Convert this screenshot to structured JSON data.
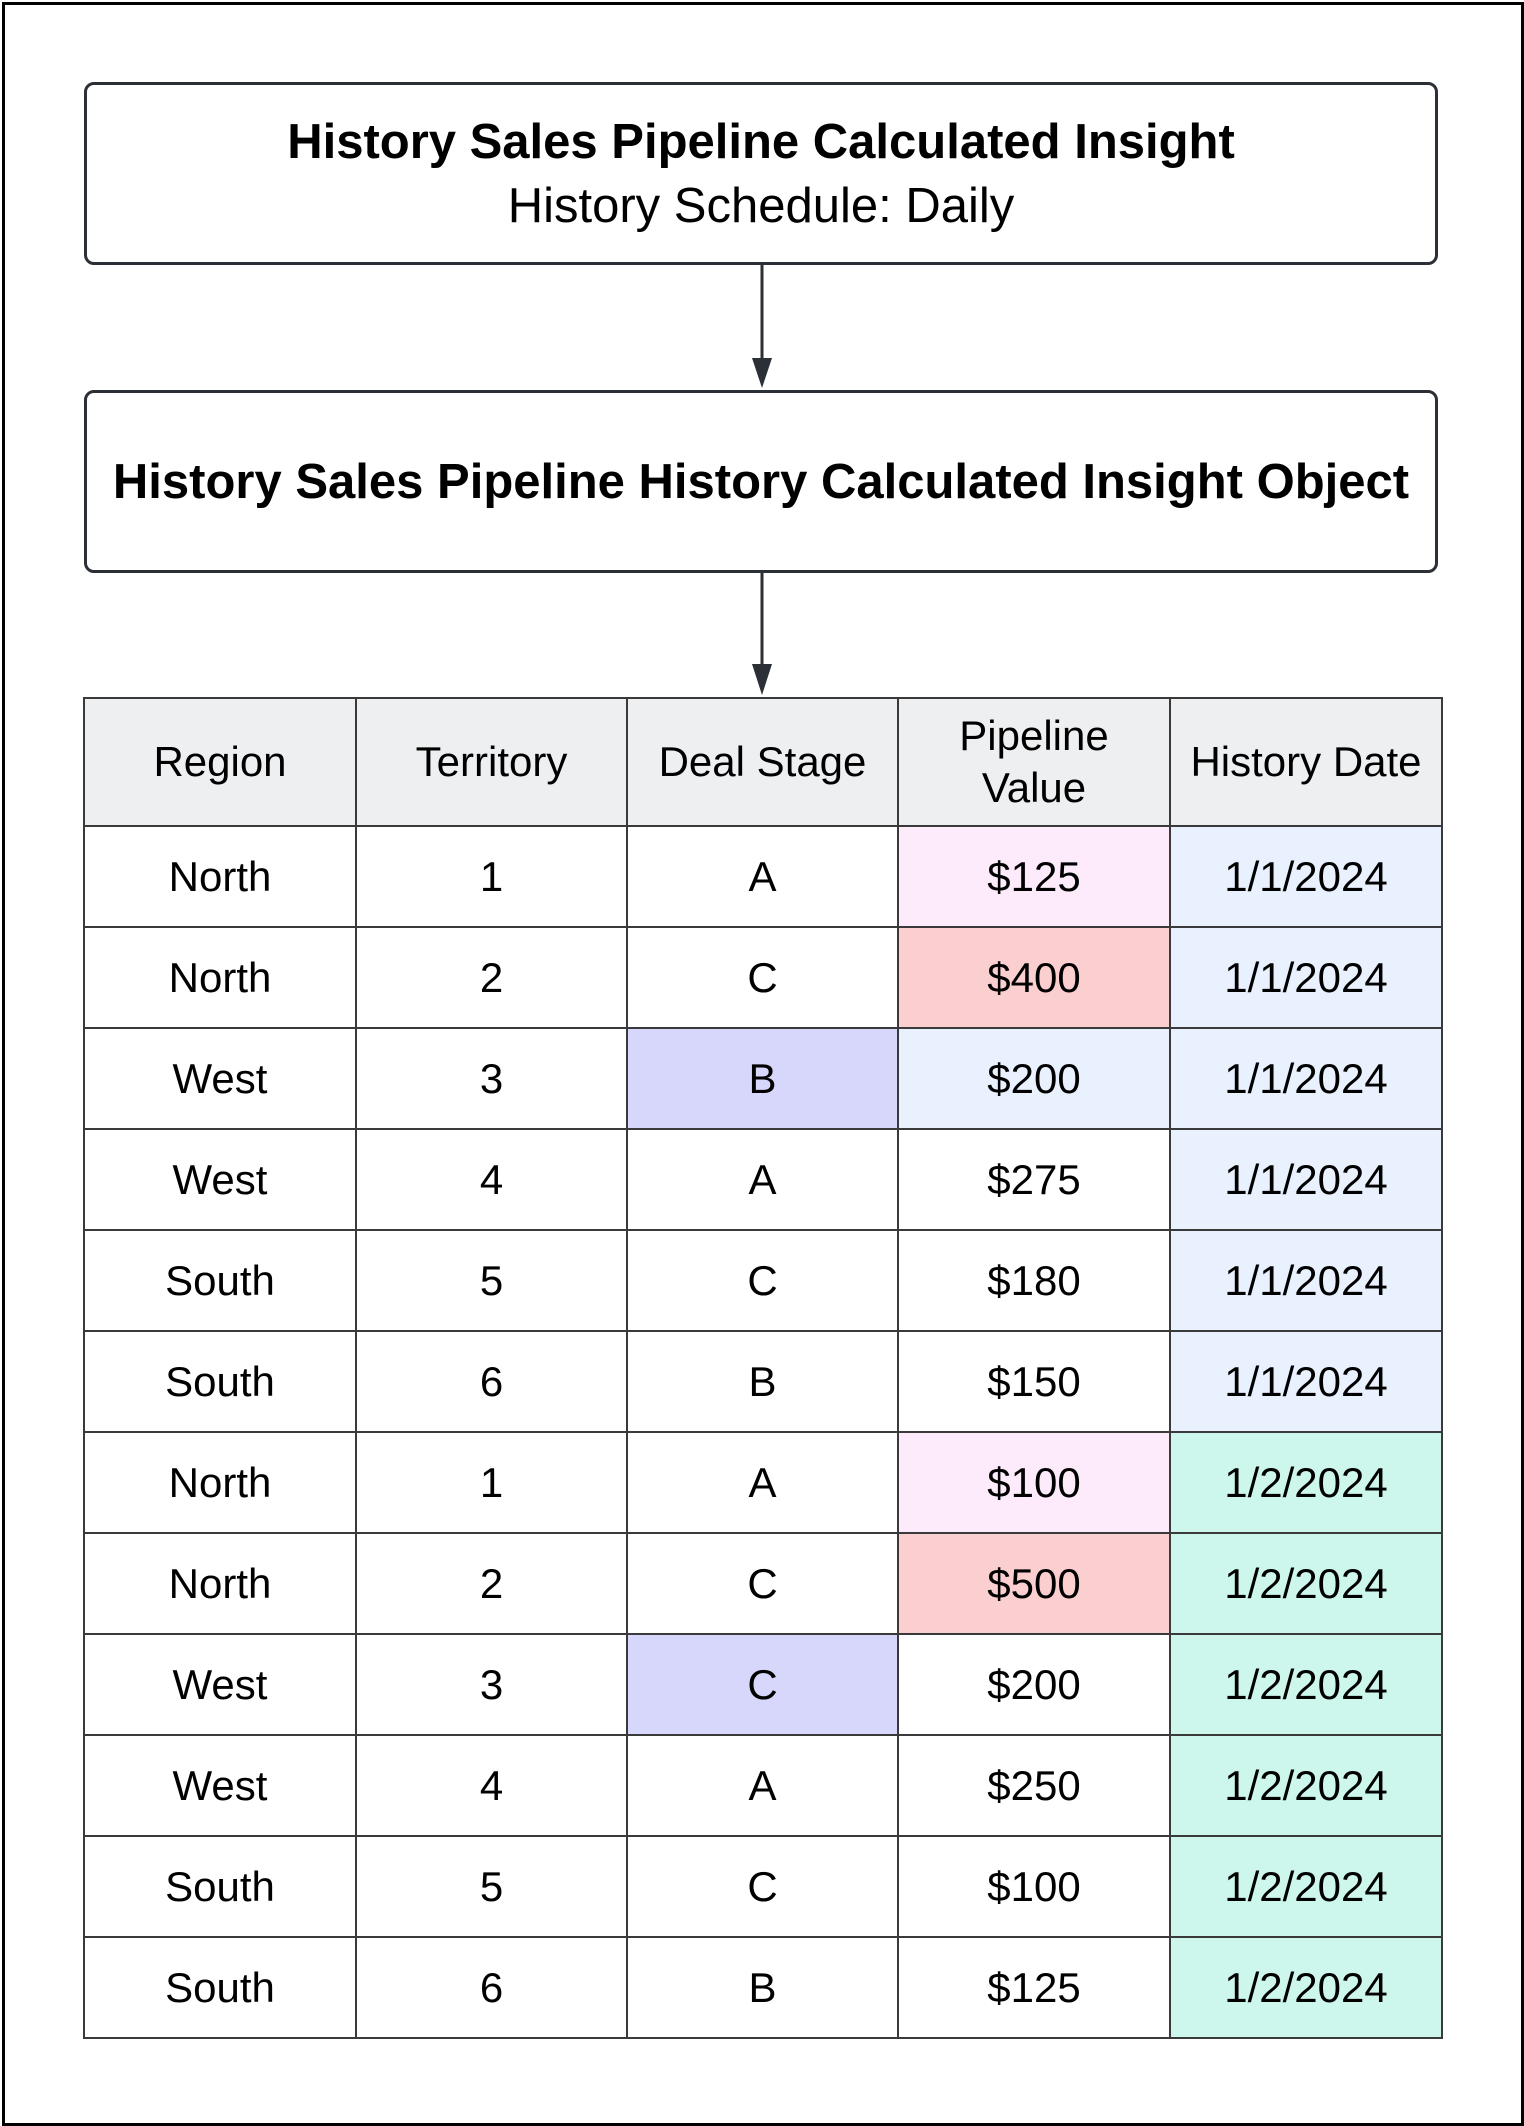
{
  "top_box": {
    "title": "History Sales Pipeline Calculated Insight",
    "subtitle": "History Schedule: Daily"
  },
  "object_box": {
    "title": "History Sales Pipeline History Calculated Insight Object"
  },
  "table": {
    "headers": [
      "Region",
      "Territory",
      "Deal Stage",
      "Pipeline Value",
      "History Date"
    ],
    "rows": [
      [
        "North",
        "1",
        "A",
        "$125",
        "1/1/2024"
      ],
      [
        "North",
        "2",
        "C",
        "$400",
        "1/1/2024"
      ],
      [
        "West",
        "3",
        "B",
        "$200",
        "1/1/2024"
      ],
      [
        "West",
        "4",
        "A",
        "$275",
        "1/1/2024"
      ],
      [
        "South",
        "5",
        "C",
        "$180",
        "1/1/2024"
      ],
      [
        "South",
        "6",
        "B",
        "$150",
        "1/1/2024"
      ],
      [
        "North",
        "1",
        "A",
        "$100",
        "1/2/2024"
      ],
      [
        "North",
        "2",
        "C",
        "$500",
        "1/2/2024"
      ],
      [
        "West",
        "3",
        "C",
        "$200",
        "1/2/2024"
      ],
      [
        "West",
        "4",
        "A",
        "$250",
        "1/2/2024"
      ],
      [
        "South",
        "5",
        "C",
        "$100",
        "1/2/2024"
      ],
      [
        "South",
        "6",
        "B",
        "$125",
        "1/2/2024"
      ]
    ],
    "cell_highlights": [
      {
        "row": 0,
        "col": 3,
        "color": "#fdeafa"
      },
      {
        "row": 1,
        "col": 3,
        "color": "#fbcfcf"
      },
      {
        "row": 2,
        "col": 2,
        "color": "#d7d6fb"
      },
      {
        "row": 2,
        "col": 3,
        "color": "#e8f1fd"
      },
      {
        "row": 6,
        "col": 3,
        "color": "#fdeafa"
      },
      {
        "row": 7,
        "col": 3,
        "color": "#fbcfcf"
      },
      {
        "row": 8,
        "col": 2,
        "color": "#d7d6fb"
      }
    ],
    "date_colors": {
      "1/1/2024": "#e8f1fd",
      "1/2/2024": "#cdf7ec"
    }
  },
  "colors": {
    "border": "#2b2f36",
    "header_bg": "#eeeff1",
    "arrow": "#2b2f36"
  }
}
